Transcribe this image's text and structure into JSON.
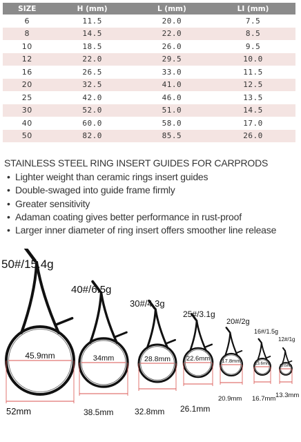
{
  "table": {
    "headers": [
      "SIZE",
      "H (mm)",
      "L (mm)",
      "LI (mm)"
    ],
    "rows": [
      [
        "6",
        "11.5",
        "20.0",
        "7.5"
      ],
      [
        "8",
        "14.5",
        "22.0",
        "8.5"
      ],
      [
        "10",
        "18.5",
        "26.0",
        "9.5"
      ],
      [
        "12",
        "22.0",
        "29.5",
        "10.0"
      ],
      [
        "16",
        "26.5",
        "33.0",
        "11.5"
      ],
      [
        "20",
        "32.5",
        "41.0",
        "12.5"
      ],
      [
        "25",
        "42.0",
        "46.0",
        "13.5"
      ],
      [
        "30",
        "52.0",
        "51.0",
        "14.5"
      ],
      [
        "40",
        "60.0",
        "58.0",
        "17.0"
      ],
      [
        "50",
        "82.0",
        "85.5",
        "26.0"
      ]
    ]
  },
  "features": {
    "title": "STAINLESS STEEL RING INSERT GUIDES FOR CARPRODS",
    "items": [
      "Lighter weight than ceramic rings insert guides",
      "Double-swaged into guide frame firmly",
      "Greater sensitivity",
      "Adaman coating gives better performance in rust-proof",
      "Larger inner diameter of ring insert offers smoother line release"
    ]
  },
  "guides": [
    {
      "weight": "50#/15.4g",
      "inner": "45.9mm",
      "width": "52mm"
    },
    {
      "weight": "40#/6.5g",
      "inner": "34mm",
      "width": "38.5mm"
    },
    {
      "weight": "30#/4.3g",
      "inner": "28.8mm",
      "width": "32.8mm"
    },
    {
      "weight": "25#/3.1g",
      "inner": "22.6mm",
      "width": "26.1mm"
    },
    {
      "weight": "20#/2g",
      "inner": "17.8mm",
      "width": "20.9mm"
    },
    {
      "weight": "16#/1.5g",
      "inner": "13.6mm",
      "width": "16.7mm"
    },
    {
      "weight": "12#/1g",
      "inner": "10.6mm",
      "width": "13.3mm"
    }
  ],
  "colors": {
    "header_bg": "#8b8b8b",
    "row_alt_bg": "#f4e4e2",
    "measure_line": "#d9534f",
    "guide_frame": "#111111"
  }
}
